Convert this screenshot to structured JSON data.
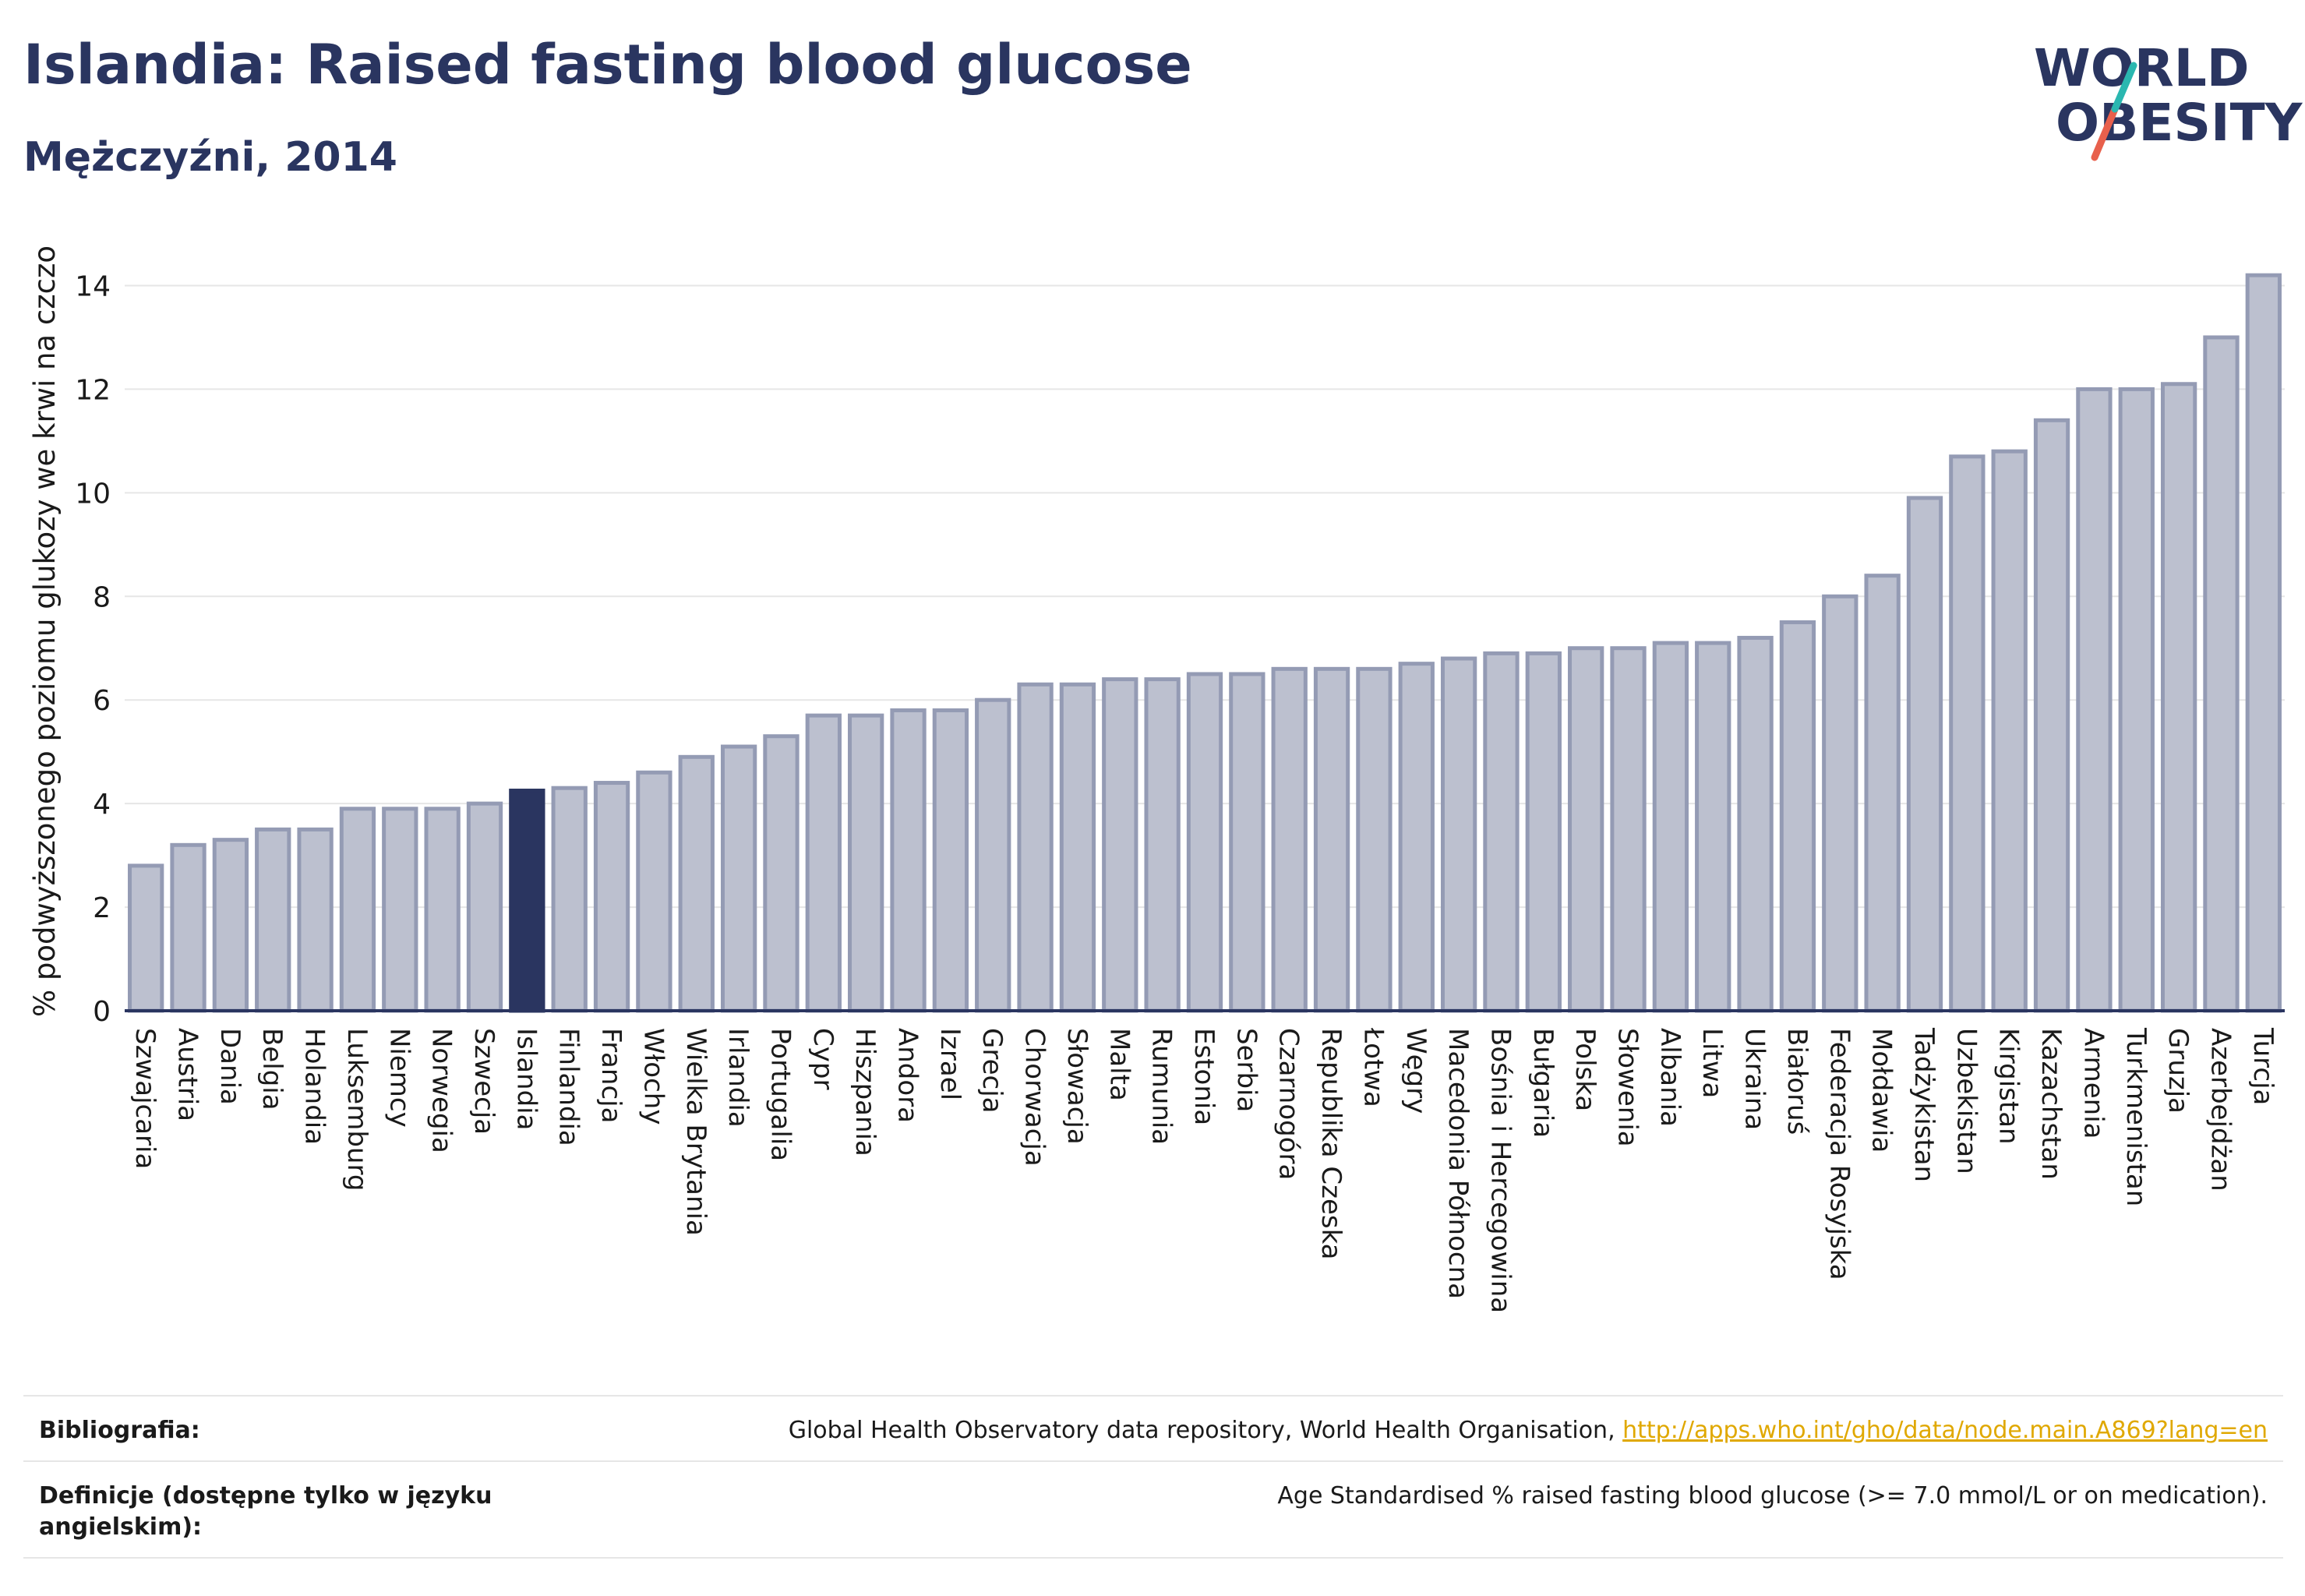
{
  "title": "Islandia: Raised fasting blood glucose",
  "subtitle": "Mężczyźni, 2014",
  "logo": {
    "line1": "WORLD",
    "line2": "OBESITY",
    "accent_colors": [
      "#2ab7b0",
      "#e8604c"
    ]
  },
  "colors": {
    "bar": "#bcc0cf",
    "bar_border": "#949bb4",
    "highlight": "#2a3560",
    "text": "#2a3560",
    "grid": "#e6e6e6"
  },
  "chart_data": {
    "type": "bar",
    "ylabel": "% podwyższonego poziomu glukozy we krwi na czczo",
    "xlabel": "",
    "ylim": [
      0,
      15
    ],
    "yticks": [
      0,
      2,
      4,
      6,
      8,
      10,
      12,
      14
    ],
    "grid": true,
    "highlight": "Islandia",
    "categories": [
      "Szwajcaria",
      "Austria",
      "Dania",
      "Belgia",
      "Holandia",
      "Luksemburg",
      "Niemcy",
      "Norwegia",
      "Szwecja",
      "Islandia",
      "Finlandia",
      "Francja",
      "Włochy",
      "Wielka Brytania",
      "Irlandia",
      "Portugalia",
      "Cypr",
      "Hiszpania",
      "Andora",
      "Izrael",
      "Grecja",
      "Chorwacja",
      "Słowacja",
      "Malta",
      "Rumunia",
      "Estonia",
      "Serbia",
      "Czarnogóra",
      "Republika Czeska",
      "Łotwa",
      "Węgry",
      "Macedonia Północna",
      "Bośnia i Hercegowina",
      "Bułgaria",
      "Polska",
      "Słowenia",
      "Albania",
      "Litwa",
      "Ukraina",
      "Białoruś",
      "Federacja Rosyjska",
      "Mołdawia",
      "Tadżykistan",
      "Uzbekistan",
      "Kirgistan",
      "Kazachstan",
      "Armenia",
      "Turkmenistan",
      "Gruzja",
      "Azerbejdżan",
      "Turcja"
    ],
    "values": [
      2.8,
      3.2,
      3.3,
      3.5,
      3.5,
      3.9,
      3.9,
      3.9,
      4.0,
      4.25,
      4.3,
      4.4,
      4.6,
      4.9,
      5.1,
      5.3,
      5.7,
      5.7,
      5.8,
      5.8,
      6.0,
      6.3,
      6.3,
      6.4,
      6.4,
      6.5,
      6.5,
      6.6,
      6.6,
      6.6,
      6.7,
      6.8,
      6.9,
      6.9,
      7.0,
      7.0,
      7.1,
      7.1,
      7.2,
      7.5,
      8.0,
      8.4,
      9.9,
      10.7,
      10.8,
      11.4,
      12.0,
      12.0,
      12.1,
      13.0,
      14.2
    ]
  },
  "footer": {
    "bibliography_label": "Bibliografia:",
    "bibliography_text": "Global Health Observatory data repository, World Health Organisation, ",
    "bibliography_link": "http://apps.who.int/gho/data/node.main.A869?lang=en",
    "definitions_label": "Definicje (dostępne tylko w języku angielskim):",
    "definitions_text": "Age Standardised % raised fasting blood glucose (>= 7.0 mmol/L or on medication)."
  }
}
